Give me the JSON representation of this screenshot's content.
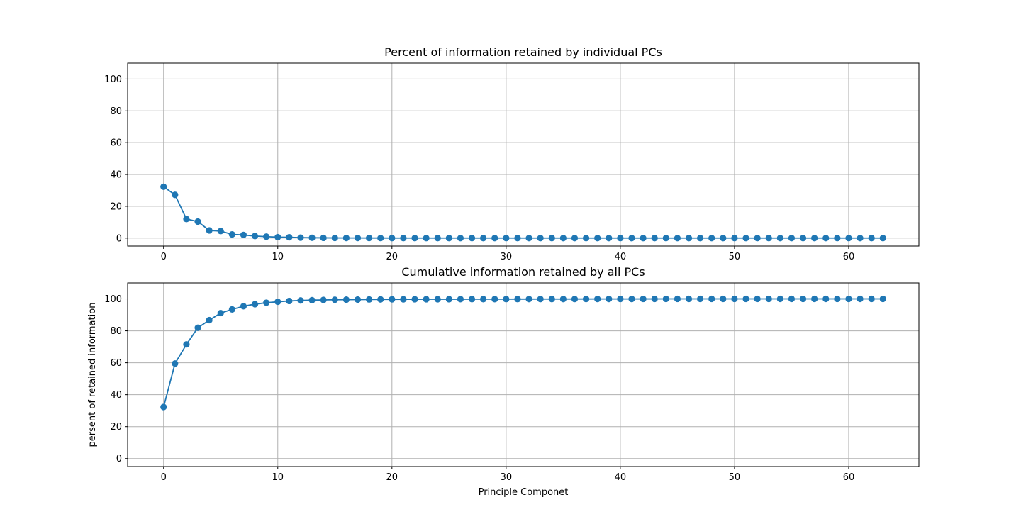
{
  "chart_data": [
    {
      "type": "line",
      "title": "Percent of information retained by individual PCs",
      "xlabel": "",
      "ylabel": "",
      "xlim": [
        -3.15,
        66.15
      ],
      "ylim": [
        -5,
        110
      ],
      "xticks": [
        0,
        10,
        20,
        30,
        40,
        50,
        60
      ],
      "yticks": [
        0,
        20,
        40,
        60,
        80,
        100
      ],
      "grid": true,
      "marker": "circle",
      "color": "#1f77b4",
      "series": [
        {
          "x": [
            0,
            1,
            2,
            3,
            4,
            5,
            6,
            7,
            8,
            9,
            10,
            11,
            12,
            13,
            14,
            15,
            16,
            17,
            18,
            19,
            20,
            21,
            22,
            23,
            24,
            25,
            26,
            27,
            28,
            29,
            30,
            31,
            32,
            33,
            34,
            35,
            36,
            37,
            38,
            39,
            40,
            41,
            42,
            43,
            44,
            45,
            46,
            47,
            48,
            49,
            50,
            51,
            52,
            53,
            54,
            55,
            56,
            57,
            58,
            59,
            60,
            61,
            62,
            63
          ],
          "values": [
            32.3,
            27.2,
            12.0,
            10.4,
            4.8,
            4.4,
            2.3,
            2.0,
            1.3,
            0.9,
            0.6,
            0.5,
            0.3,
            0.2,
            0.15,
            0.1,
            0.08,
            0.06,
            0.05,
            0.04,
            0.03,
            0.03,
            0.02,
            0.02,
            0.02,
            0.01,
            0.01,
            0.01,
            0.01,
            0.01,
            0,
            0,
            0,
            0,
            0,
            0,
            0,
            0,
            0,
            0,
            0,
            0,
            0,
            0,
            0,
            0,
            0,
            0,
            0,
            0,
            0,
            0,
            0,
            0,
            0,
            0,
            0,
            0,
            0,
            0,
            0,
            0,
            0,
            0
          ]
        }
      ]
    },
    {
      "type": "line",
      "title": "Cumulative information retained by all PCs",
      "xlabel": "Principle Componet",
      "ylabel": "persent of retained information",
      "xlim": [
        -3.15,
        66.15
      ],
      "ylim": [
        -5,
        110
      ],
      "xticks": [
        0,
        10,
        20,
        30,
        40,
        50,
        60
      ],
      "yticks": [
        0,
        20,
        40,
        60,
        80,
        100
      ],
      "grid": true,
      "marker": "circle",
      "color": "#1f77b4",
      "series": [
        {
          "x": [
            0,
            1,
            2,
            3,
            4,
            5,
            6,
            7,
            8,
            9,
            10,
            11,
            12,
            13,
            14,
            15,
            16,
            17,
            18,
            19,
            20,
            21,
            22,
            23,
            24,
            25,
            26,
            27,
            28,
            29,
            30,
            31,
            32,
            33,
            34,
            35,
            36,
            37,
            38,
            39,
            40,
            41,
            42,
            43,
            44,
            45,
            46,
            47,
            48,
            49,
            50,
            51,
            52,
            53,
            54,
            55,
            56,
            57,
            58,
            59,
            60,
            61,
            62,
            63
          ],
          "values": [
            32.3,
            59.5,
            71.5,
            81.9,
            86.7,
            91.1,
            93.4,
            95.4,
            96.7,
            97.6,
            98.2,
            98.7,
            99.0,
            99.2,
            99.35,
            99.45,
            99.53,
            99.59,
            99.64,
            99.68,
            99.71,
            99.74,
            99.76,
            99.78,
            99.8,
            99.81,
            99.82,
            99.83,
            99.84,
            99.85,
            99.86,
            99.87,
            99.88,
            99.89,
            99.9,
            99.91,
            99.92,
            99.93,
            99.94,
            99.95,
            99.96,
            99.97,
            99.98,
            99.99,
            100,
            100,
            100,
            100,
            100,
            100,
            100,
            100,
            100,
            100,
            100,
            100,
            100,
            100,
            100,
            100,
            100,
            100,
            100,
            100
          ]
        }
      ]
    }
  ]
}
